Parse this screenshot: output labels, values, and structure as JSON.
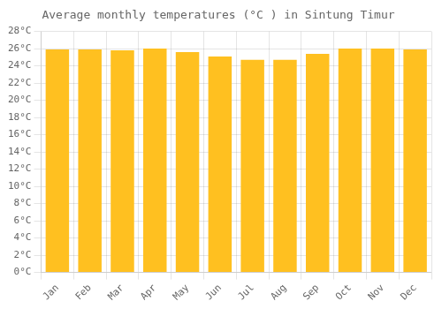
{
  "chart_data": {
    "type": "bar",
    "title": "Average monthly temperatures (°C ) in Sintung Timur",
    "categories": [
      "Jan",
      "Feb",
      "Mar",
      "Apr",
      "May",
      "Jun",
      "Jul",
      "Aug",
      "Sep",
      "Oct",
      "Nov",
      "Dec"
    ],
    "values": [
      25.9,
      25.9,
      25.8,
      26.0,
      25.6,
      25.1,
      24.7,
      24.7,
      25.4,
      26.0,
      26.0,
      25.9
    ],
    "color": "#FFC020",
    "ylim": [
      0,
      28
    ],
    "yticks": [
      {
        "value": 0,
        "label": "0°C"
      },
      {
        "value": 2,
        "label": "2°C"
      },
      {
        "value": 4,
        "label": "4°C"
      },
      {
        "value": 6,
        "label": "6°C"
      },
      {
        "value": 8,
        "label": "8°C"
      },
      {
        "value": 10,
        "label": "10°C"
      },
      {
        "value": 12,
        "label": "12°C"
      },
      {
        "value": 14,
        "label": "14°C"
      },
      {
        "value": 16,
        "label": "16°C"
      },
      {
        "value": 18,
        "label": "18°C"
      },
      {
        "value": 20,
        "label": "20°C"
      },
      {
        "value": 22,
        "label": "22°C"
      },
      {
        "value": 24,
        "label": "24°C"
      },
      {
        "value": 26,
        "label": "26°C"
      },
      {
        "value": 28,
        "label": "28°C"
      }
    ],
    "grid": true
  }
}
